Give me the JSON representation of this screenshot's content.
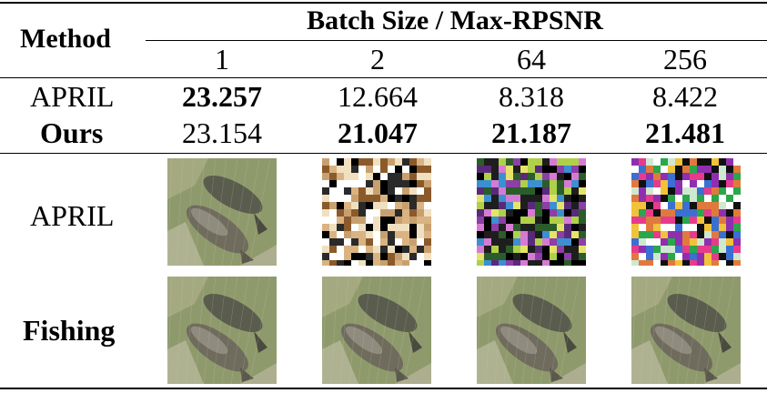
{
  "table": {
    "method_header": "Method",
    "group_header": "Batch Size / Max-RPSNR",
    "batch_sizes": [
      "1",
      "2",
      "64",
      "256"
    ],
    "rows": [
      {
        "method": "APRIL",
        "values": [
          "23.257",
          "12.664",
          "8.318",
          "8.422"
        ],
        "bold": [
          true,
          false,
          false,
          false
        ]
      },
      {
        "method": "Ours",
        "values": [
          "23.154",
          "21.047",
          "21.187",
          "21.481"
        ],
        "bold": [
          false,
          true,
          true,
          true
        ]
      }
    ],
    "image_rows": [
      {
        "label": "APRIL",
        "images": [
          "fish-reconstruction",
          "noisy-reconstruction",
          "noisy-reconstruction",
          "noisy-reconstruction"
        ]
      },
      {
        "label": "Fishing",
        "images": [
          "fish-reconstruction",
          "fish-reconstruction",
          "fish-reconstruction",
          "fish-reconstruction"
        ]
      }
    ]
  }
}
